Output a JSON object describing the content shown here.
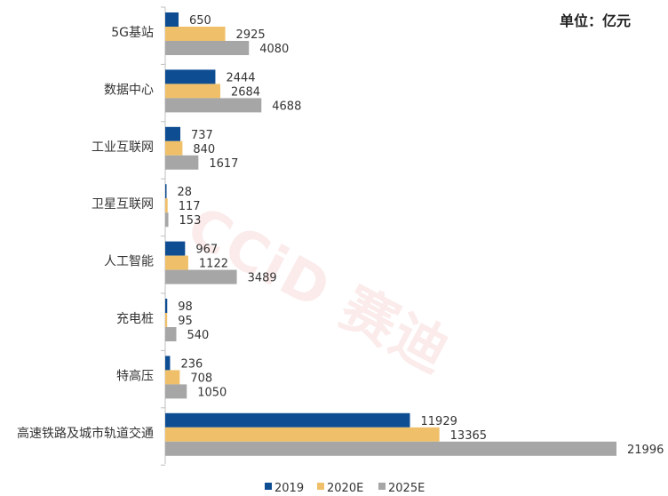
{
  "unit_label": "单位：亿元",
  "watermark": "CCiD 赛迪",
  "colors": {
    "s2019": "#0e4d92",
    "s2020": "#efc069",
    "s2025": "#a6a6a6",
    "axis": "#bfbfbf"
  },
  "chart_data": {
    "type": "bar",
    "orientation": "horizontal",
    "categories": [
      "5G基站",
      "数据中心",
      "工业互联网",
      "卫星互联网",
      "人工智能",
      "充电桩",
      "特高压",
      "高速铁路及城市轨道交通"
    ],
    "series": [
      {
        "name": "2019",
        "values": [
          650,
          2444,
          737,
          28,
          967,
          98,
          236,
          11929
        ]
      },
      {
        "name": "2020E",
        "values": [
          2925,
          2684,
          840,
          117,
          1122,
          95,
          708,
          13365
        ]
      },
      {
        "name": "2025E",
        "values": [
          4080,
          4688,
          1617,
          153,
          3489,
          540,
          1050,
          21996
        ]
      }
    ],
    "xlim": [
      0,
      22000
    ],
    "legend_position": "bottom",
    "grid": false
  }
}
